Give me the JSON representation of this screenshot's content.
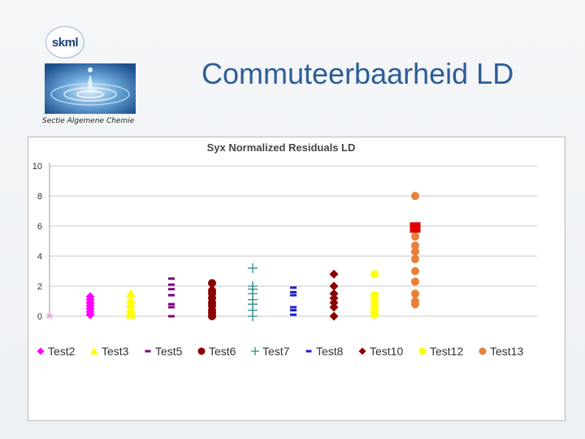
{
  "header": {
    "logo_text": "skml",
    "caption": "Sectie Algemene Chemie",
    "title": "Commuteerbaarheid LD"
  },
  "chart_data": {
    "type": "scatter",
    "title": "Syx Normalized Residuals LD",
    "xlabel": "",
    "ylabel": "",
    "ylim": [
      0,
      10
    ],
    "yticks": [
      0,
      2,
      4,
      6,
      8,
      10
    ],
    "grid": true,
    "legend_position": "bottom",
    "series": [
      {
        "name": "",
        "marker": "asterisk",
        "color": "#e8a0d8",
        "x": 1,
        "values": [
          0
        ]
      },
      {
        "name": "Test2",
        "marker": "diamond",
        "color": "#ff00ff",
        "x": 2,
        "values": [
          0.1,
          0.3,
          0.5,
          0.7,
          0.9,
          1.1,
          1.3
        ]
      },
      {
        "name": "Test3",
        "marker": "triangle",
        "color": "#ffff00",
        "x": 3,
        "values": [
          0.1,
          0.3,
          0.5,
          0.8,
          1.1,
          1.5
        ]
      },
      {
        "name": "Test5",
        "marker": "dash",
        "color": "#800080",
        "x": 4,
        "values": [
          0,
          0.6,
          0.8,
          1.4,
          1.8,
          2.1,
          2.5
        ]
      },
      {
        "name": "Test6",
        "marker": "circle",
        "color": "#8b0000",
        "x": 5,
        "values": [
          0,
          0.2,
          0.4,
          0.7,
          0.9,
          1.2,
          1.5,
          1.7,
          2.2
        ]
      },
      {
        "name": "Test7",
        "marker": "plus",
        "color": "#2e8b8b",
        "x": 6,
        "values": [
          0,
          0.4,
          0.8,
          1.1,
          1.5,
          1.8,
          2.0,
          3.2
        ]
      },
      {
        "name": "Test8",
        "marker": "dash",
        "color": "#1f1fd0",
        "x": 7,
        "values": [
          0.1,
          0.4,
          0.6,
          1.4,
          1.6,
          1.9
        ]
      },
      {
        "name": "Test10",
        "marker": "diamond",
        "color": "#8b0000",
        "x": 8,
        "values": [
          0,
          0.6,
          0.9,
          1.2,
          1.5,
          2.0,
          2.8
        ]
      },
      {
        "name": "Test12",
        "marker": "circle",
        "color": "#ffff00",
        "x": 9,
        "values": [
          0.1,
          0.3,
          0.5,
          0.8,
          1.1,
          1.4,
          2.8
        ]
      },
      {
        "name": "Test13",
        "marker": "circle",
        "color": "#e8803a",
        "x": 10,
        "values": [
          0.8,
          1.0,
          1.5,
          2.3,
          3.0,
          3.8,
          4.3,
          4.7,
          5.3,
          5.9,
          8.0
        ]
      },
      {
        "name": "",
        "marker": "square",
        "color": "#e00000",
        "x": 10,
        "values": [
          5.9
        ]
      }
    ]
  }
}
